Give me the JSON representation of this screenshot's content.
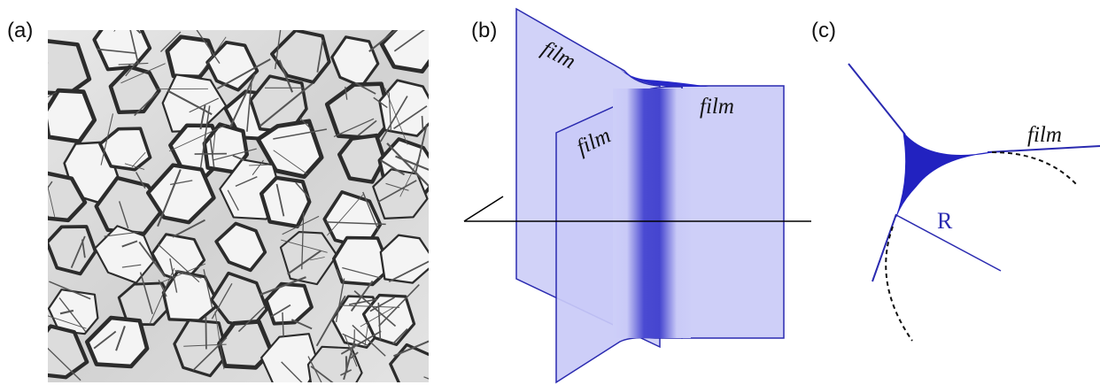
{
  "panels": {
    "a": {
      "label": "(a)"
    },
    "b": {
      "label": "(b)",
      "film_labels": [
        "film",
        "film",
        "film"
      ]
    },
    "c": {
      "label": "(c)",
      "film_label": "film",
      "radius_label": "R"
    }
  },
  "colors": {
    "film_fill": "#c9caf7",
    "film_edge": "#2a2ab0",
    "border_dark": "#2424c8",
    "foam_edge": "#2c2c2c"
  },
  "icons": [
    "foam-photo"
  ]
}
